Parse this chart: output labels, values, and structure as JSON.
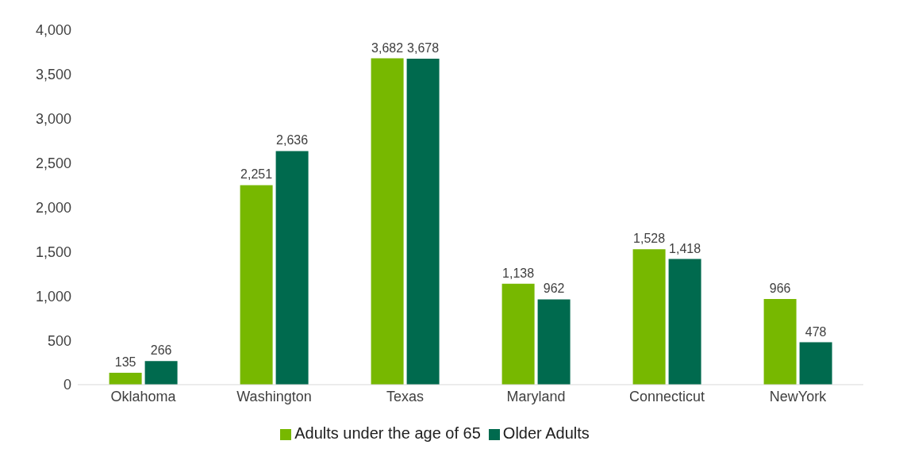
{
  "chart_data": {
    "type": "bar",
    "categories": [
      "Oklahoma",
      "Washington",
      "Texas",
      "Maryland",
      "Connecticut",
      "NewYork"
    ],
    "series": [
      {
        "name": "Adults under the age of 65",
        "color": "#77b800",
        "values": [
          135,
          2251,
          3682,
          1138,
          1528,
          966
        ],
        "value_labels": [
          "135",
          "2,251",
          "3,682",
          "1,138",
          "1,528",
          "966"
        ]
      },
      {
        "name": "Older Adults",
        "color": "#006a4e",
        "values": [
          266,
          2636,
          3678,
          962,
          1418,
          478
        ],
        "value_labels": [
          "266",
          "2,636",
          "3,678",
          "962",
          "1,418",
          "478"
        ]
      }
    ],
    "ylim": [
      0,
      4000
    ],
    "yticks": [
      0,
      {
        "value": 500,
        "label": "500"
      },
      {
        "value": 1000,
        "label": "1,000"
      },
      {
        "value": 1500,
        "label": "1,500"
      },
      {
        "value": 2000,
        "label": "2,000"
      },
      {
        "value": 2500,
        "label": "2,500"
      },
      {
        "value": 3000,
        "label": "3,000"
      },
      {
        "value": 3500,
        "label": "3,500"
      },
      {
        "value": 4000,
        "label": "4,000"
      }
    ],
    "grid": false,
    "legend": "bottom"
  }
}
